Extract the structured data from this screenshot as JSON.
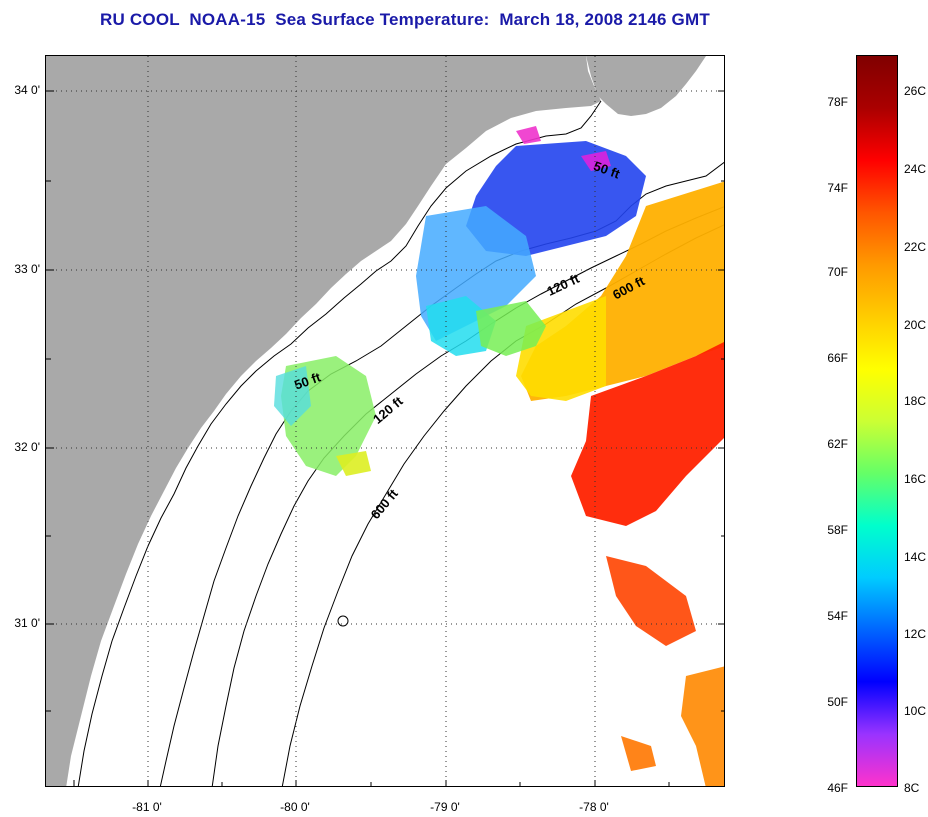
{
  "title": "RU COOL  NOAA-15  Sea Surface Temperature:  March 18, 2008 2146 GMT",
  "lat_labels": [
    "34 0'",
    "33 0'",
    "32 0'",
    "31 0'"
  ],
  "lon_labels": [
    "-81 0'",
    "-80 0'",
    "-79 0'",
    "-78 0'"
  ],
  "depth_labels": [
    "50 ft",
    "120 ft",
    "600 ft",
    "50 ft",
    "120 ft",
    "600 ft"
  ],
  "colorbar": {
    "f_labels": [
      "78F",
      "74F",
      "70F",
      "66F",
      "62F",
      "58F",
      "54F",
      "50F",
      "46F"
    ],
    "c_labels": [
      "26C",
      "24C",
      "22C",
      "20C",
      "18C",
      "16C",
      "14C",
      "12C",
      "10C",
      "8C"
    ],
    "colors": [
      "#ff33cc",
      "#9933ff",
      "#0000ff",
      "#0066ff",
      "#00ccff",
      "#00ffcc",
      "#66ff66",
      "#ccff33",
      "#ffff00",
      "#ffcc00",
      "#ff9900",
      "#ff5500",
      "#ff0000",
      "#aa0000",
      "#800000"
    ]
  },
  "palette": {
    "land": "#a9a9a9",
    "ocean": "#ffffff",
    "title_color": "#1a1aa8"
  }
}
